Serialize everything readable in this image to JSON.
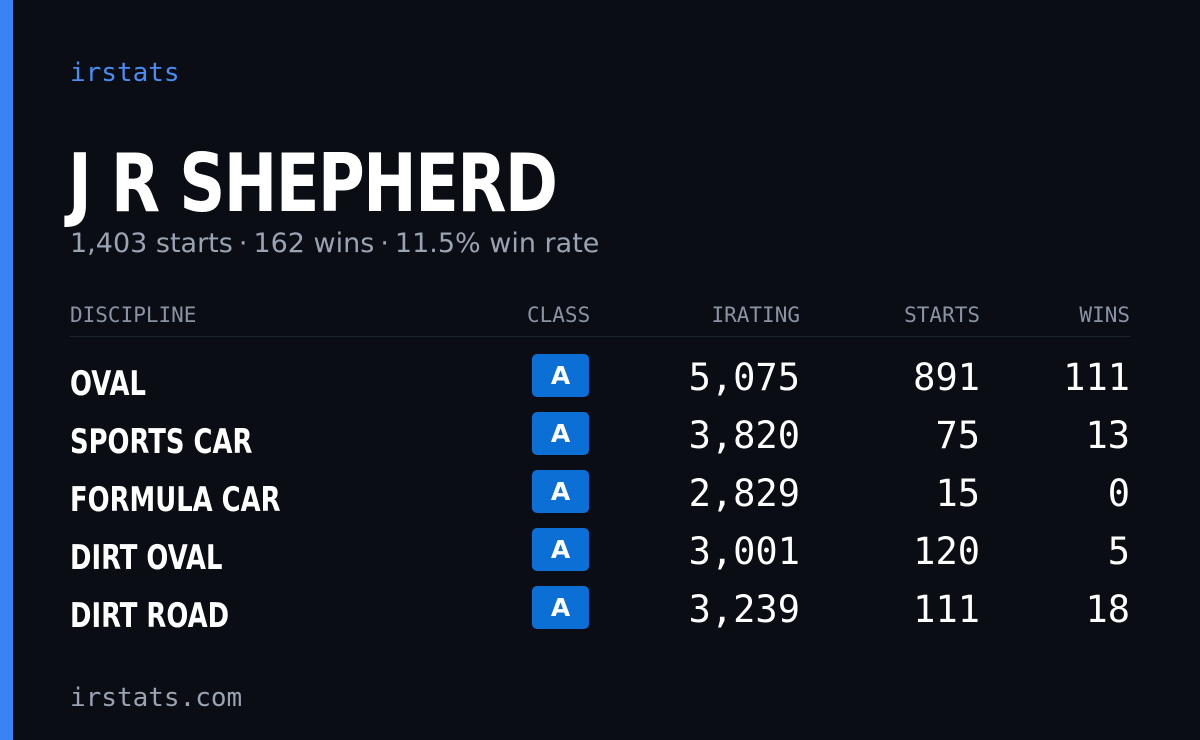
{
  "brand": "irstats",
  "driver": {
    "name": "J R SHEPHERD",
    "starts": "1,403 starts",
    "wins": "162 wins",
    "win_rate": "11.5% win rate",
    "separator": "·"
  },
  "table": {
    "headers": {
      "discipline": "DISCIPLINE",
      "class": "CLASS",
      "irating": "IRATING",
      "starts": "STARTS",
      "wins": "WINS"
    },
    "rows": [
      {
        "discipline": "OVAL",
        "class": "A",
        "irating": "5,075",
        "starts": "891",
        "wins": "111"
      },
      {
        "discipline": "SPORTS CAR",
        "class": "A",
        "irating": "3,820",
        "starts": "75",
        "wins": "13"
      },
      {
        "discipline": "FORMULA CAR",
        "class": "A",
        "irating": "2,829",
        "starts": "15",
        "wins": "0"
      },
      {
        "discipline": "DIRT OVAL",
        "class": "A",
        "irating": "3,001",
        "starts": "120",
        "wins": "5"
      },
      {
        "discipline": "DIRT ROAD",
        "class": "A",
        "irating": "3,239",
        "starts": "111",
        "wins": "18"
      }
    ]
  },
  "footer": "irstats.com",
  "colors": {
    "background": "#0a0d14",
    "accent": "#3b82f6",
    "badge": "#0b6fd6"
  }
}
